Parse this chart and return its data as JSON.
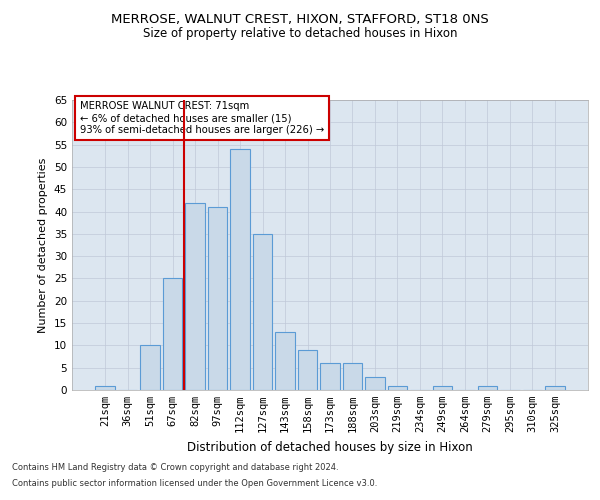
{
  "title": "MERROSE, WALNUT CREST, HIXON, STAFFORD, ST18 0NS",
  "subtitle": "Size of property relative to detached houses in Hixon",
  "xlabel": "Distribution of detached houses by size in Hixon",
  "ylabel": "Number of detached properties",
  "footnote1": "Contains HM Land Registry data © Crown copyright and database right 2024.",
  "footnote2": "Contains public sector information licensed under the Open Government Licence v3.0.",
  "categories": [
    "21sqm",
    "36sqm",
    "51sqm",
    "67sqm",
    "82sqm",
    "97sqm",
    "112sqm",
    "127sqm",
    "143sqm",
    "158sqm",
    "173sqm",
    "188sqm",
    "203sqm",
    "219sqm",
    "234sqm",
    "249sqm",
    "264sqm",
    "279sqm",
    "295sqm",
    "310sqm",
    "325sqm"
  ],
  "values": [
    1,
    0,
    10,
    25,
    42,
    41,
    54,
    35,
    13,
    9,
    6,
    6,
    3,
    1,
    0,
    1,
    0,
    1,
    0,
    0,
    1
  ],
  "bar_color": "#c9d9e8",
  "bar_edge_color": "#5b9bd5",
  "vline_x_index": 3,
  "vline_color": "#cc0000",
  "annotation_text": "MERROSE WALNUT CREST: 71sqm\n← 6% of detached houses are smaller (15)\n93% of semi-detached houses are larger (226) →",
  "annotation_box_color": "white",
  "annotation_box_edge_color": "#cc0000",
  "ylim": [
    0,
    65
  ],
  "yticks": [
    0,
    5,
    10,
    15,
    20,
    25,
    30,
    35,
    40,
    45,
    50,
    55,
    60,
    65
  ],
  "grid_color": "#c0c8d8",
  "background_color": "#dce6f0",
  "title_fontsize": 9.5,
  "subtitle_fontsize": 8.5,
  "xlabel_fontsize": 8.5,
  "ylabel_fontsize": 8.0,
  "tick_fontsize": 7.5,
  "footnote_fontsize": 6.0
}
